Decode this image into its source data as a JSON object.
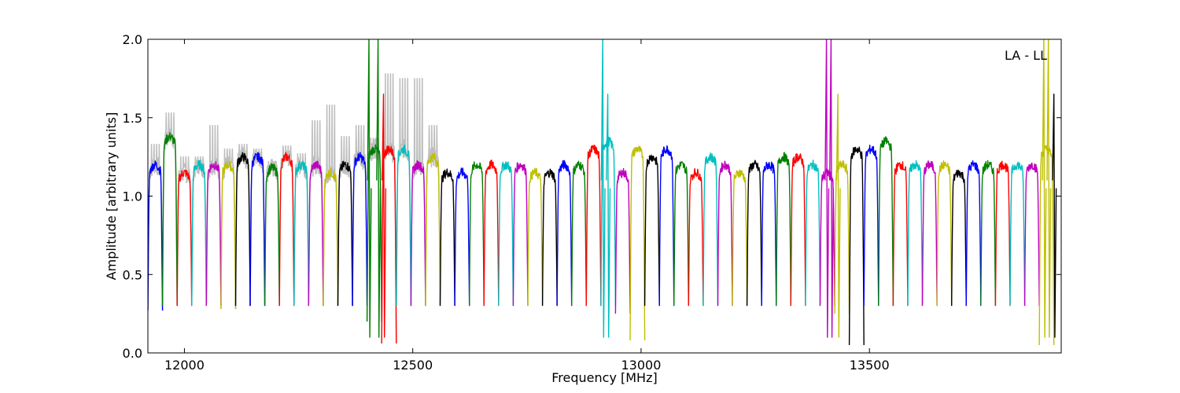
{
  "chart_data": {
    "type": "line",
    "title": "",
    "annotation": "LA - LL",
    "xlabel": "Frequency [MHz]",
    "ylabel": "Amplitude [arbitrary units]",
    "xlim": [
      11920,
      13920
    ],
    "ylim": [
      0.0,
      2.0
    ],
    "xticks": [
      12000,
      12500,
      13000,
      13500
    ],
    "yticks": [
      0.0,
      0.5,
      1.0,
      1.5,
      2.0
    ],
    "ytick_labels": [
      "0.0",
      "0.5",
      "1.0",
      "1.5",
      "2.0"
    ],
    "grid": false,
    "band_start": 11920,
    "band_width": 32,
    "band_count": 62,
    "colors": [
      "#0000ff",
      "#008000",
      "#ff0000",
      "#00bfbf",
      "#bf00bf",
      "#bfbf00",
      "#000000"
    ],
    "reference_color": "#bfbfbf",
    "reference_peaks": [
      1.33,
      1.53,
      1.25,
      1.25,
      1.45,
      1.3,
      1.33,
      1.3,
      1.22,
      1.32,
      1.27,
      1.48,
      1.58,
      1.38,
      1.45,
      1.37,
      1.78,
      1.75,
      1.75,
      1.45
    ],
    "band_levels": [
      1.2,
      1.38,
      1.15,
      1.2,
      1.2,
      1.2,
      1.25,
      1.25,
      1.18,
      1.25,
      1.2,
      1.2,
      1.15,
      1.2,
      1.25,
      1.3,
      1.3,
      1.3,
      1.2,
      1.25,
      1.15,
      1.15,
      1.2,
      1.2,
      1.2,
      1.2,
      1.15,
      1.15,
      1.2,
      1.2,
      1.3,
      1.35,
      1.15,
      1.3,
      1.25,
      1.3,
      1.2,
      1.15,
      1.25,
      1.2,
      1.15,
      1.2,
      1.2,
      1.25,
      1.25,
      1.2,
      1.15,
      1.2,
      1.3,
      1.3,
      1.35,
      1.2,
      1.2,
      1.2,
      1.2,
      1.15,
      1.2,
      1.2,
      1.2,
      1.2,
      1.2,
      1.3
    ],
    "band_dips": [
      0.27,
      0.3,
      0.3,
      0.3,
      0.3,
      0.28,
      0.3,
      0.3,
      0.3,
      0.3,
      0.3,
      0.3,
      0.3,
      0.3,
      0.3,
      0.2,
      0.06,
      0.3,
      0.3,
      0.3,
      0.3,
      0.3,
      0.3,
      0.3,
      0.3,
      0.3,
      0.3,
      0.3,
      0.3,
      0.3,
      0.3,
      0.3,
      0.25,
      0.08,
      0.3,
      0.3,
      0.3,
      0.3,
      0.3,
      0.3,
      0.3,
      0.3,
      0.3,
      0.3,
      0.3,
      0.3,
      0.3,
      0.25,
      0.05,
      0.3,
      0.3,
      0.3,
      0.3,
      0.3,
      0.3,
      0.3,
      0.3,
      0.3,
      0.3,
      0.3,
      0.3,
      0.05
    ],
    "rfi_spikes": [
      {
        "x": 12405,
        "y": 2.0
      },
      {
        "x": 12425,
        "y": 2.0
      },
      {
        "x": 12437,
        "y": 1.65
      },
      {
        "x": 12917,
        "y": 2.0
      },
      {
        "x": 12928,
        "y": 1.65
      },
      {
        "x": 13407,
        "y": 2.0
      },
      {
        "x": 13417,
        "y": 2.0
      },
      {
        "x": 13432,
        "y": 1.65
      },
      {
        "x": 13883,
        "y": 2.0
      },
      {
        "x": 13893,
        "y": 2.0
      },
      {
        "x": 13905,
        "y": 1.65
      }
    ]
  }
}
